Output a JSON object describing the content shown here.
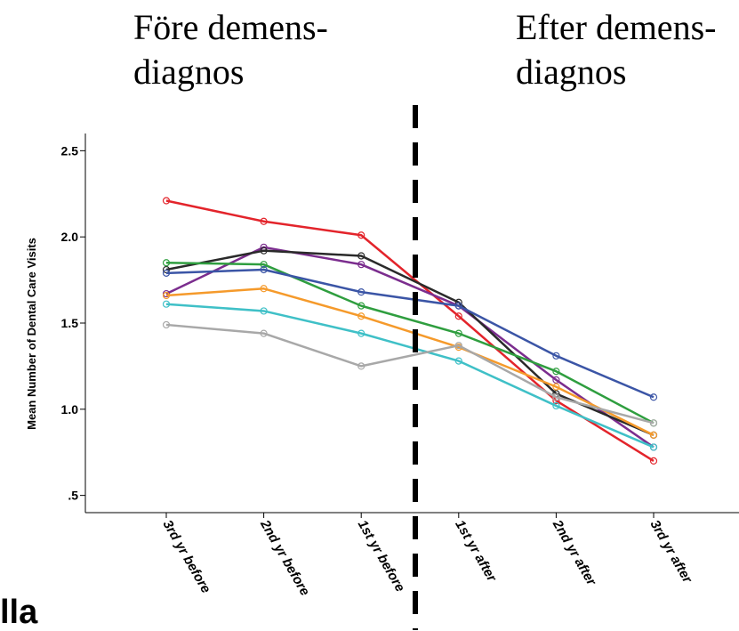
{
  "annotations": {
    "before": "Före demens-\ndiagnos",
    "after": "Efter demens-\ndiagnos"
  },
  "corner_text": "lla",
  "chart_data": {
    "type": "line",
    "title": "",
    "xlabel": "",
    "ylabel": "Mean Number of Dental Care Visits",
    "categories": [
      "3rd yr before",
      "2nd yr before",
      "1st yr before",
      "1st yr after",
      "2nd yr after",
      "3rd yr after"
    ],
    "yticks": [
      ".5",
      "1.0",
      "1.5",
      "2.0",
      "2.5"
    ],
    "ylim": [
      0.4,
      2.6
    ],
    "grid": false,
    "divider": {
      "between": [
        "1st yr before",
        "1st yr after"
      ],
      "style": "dashed",
      "color": "#000000"
    },
    "series": [
      {
        "color": "#e3242b",
        "values": [
          2.21,
          2.09,
          2.01,
          1.54,
          1.05,
          0.7
        ]
      },
      {
        "color": "#7b2d8e",
        "values": [
          1.67,
          1.94,
          1.84,
          1.6,
          1.17,
          0.78
        ]
      },
      {
        "color": "#2a2a2a",
        "values": [
          1.81,
          1.92,
          1.89,
          1.62,
          1.09,
          0.85
        ]
      },
      {
        "color": "#2f9e3f",
        "values": [
          1.85,
          1.84,
          1.6,
          1.44,
          1.22,
          0.92
        ]
      },
      {
        "color": "#3b55a6",
        "values": [
          1.79,
          1.81,
          1.68,
          1.6,
          1.31,
          1.07
        ]
      },
      {
        "color": "#f59a2b",
        "values": [
          1.66,
          1.7,
          1.54,
          1.36,
          1.13,
          0.85
        ]
      },
      {
        "color": "#3fc0c7",
        "values": [
          1.61,
          1.57,
          1.44,
          1.28,
          1.02,
          0.78
        ]
      },
      {
        "color": "#a8a8a8",
        "values": [
          1.49,
          1.44,
          1.25,
          1.37,
          1.07,
          0.92
        ]
      }
    ]
  }
}
